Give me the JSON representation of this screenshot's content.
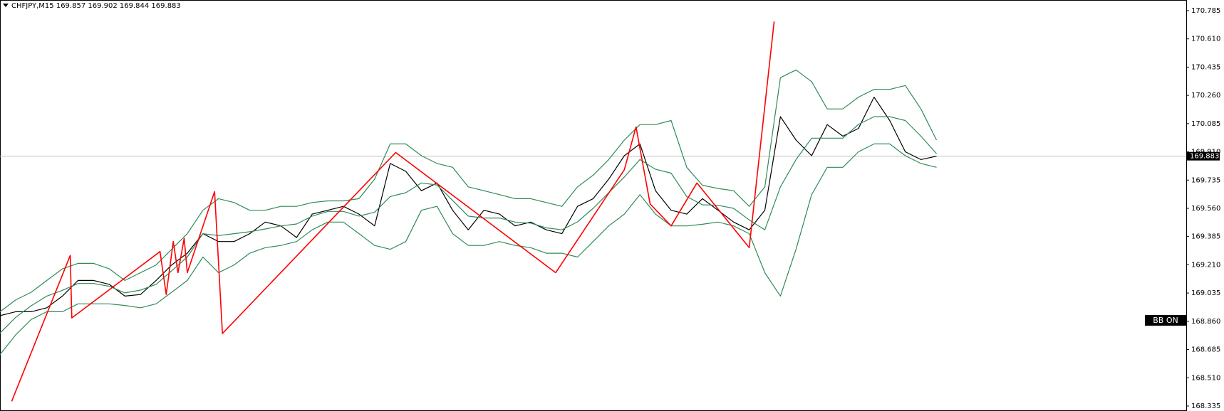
{
  "chart_data": {
    "type": "line",
    "title": "CHFJPY,M15  169.857 169.902 169.844 169.883",
    "badge": "BB ON",
    "price_line": 169.883,
    "ylim": [
      168.304,
      170.851
    ],
    "xlim": [
      0,
      76
    ],
    "yticks": [
      170.785,
      {
        "value": 170.61,
        "label": "170.610"
      },
      170.435,
      {
        "value": 170.26,
        "label": "170.260"
      },
      170.085,
      {
        "value": 169.91,
        "label": "169.910"
      },
      169.735,
      {
        "value": 169.56,
        "label": "169.560"
      },
      169.385,
      {
        "value": 169.21,
        "label": "169.210"
      },
      169.035,
      {
        "value": 168.86,
        "label": "168.860"
      },
      168.685,
      {
        "value": 168.51,
        "label": "168.510"
      },
      168.335
    ],
    "x": [
      0,
      1,
      2,
      3,
      4,
      5,
      6,
      7,
      8,
      9,
      10,
      11,
      12,
      13,
      14,
      15,
      16,
      17,
      18,
      19,
      20,
      21,
      22,
      23,
      24,
      25,
      26,
      27,
      28,
      29,
      30,
      31,
      32,
      33,
      34,
      35,
      36,
      37,
      38,
      39,
      40,
      41,
      42,
      43,
      44,
      45,
      46,
      47,
      48,
      49,
      50,
      51,
      52,
      53,
      54,
      55,
      56,
      57,
      58,
      59,
      60
    ],
    "series": [
      {
        "color": "#000000",
        "values": [
          168.895,
          168.919,
          168.919,
          168.944,
          169.016,
          169.113,
          169.113,
          169.089,
          169.016,
          169.026,
          169.113,
          169.209,
          169.282,
          169.403,
          169.354,
          169.354,
          169.403,
          169.475,
          169.451,
          169.379,
          169.524,
          169.548,
          169.572,
          169.524,
          169.451,
          169.838,
          169.789,
          169.669,
          169.717,
          169.548,
          169.427,
          169.548,
          169.524,
          169.451,
          169.475,
          169.427,
          169.403,
          169.572,
          169.62,
          169.741,
          169.886,
          169.959,
          169.669,
          169.548,
          169.524,
          169.62,
          169.548,
          169.475,
          169.427,
          169.548,
          170.128,
          169.983,
          169.886,
          170.079,
          170.007,
          170.055,
          170.249,
          170.104,
          169.91,
          169.862,
          169.883
        ]
      },
      {
        "color": "#2e8b57",
        "values": [
          168.919,
          168.992,
          169.04,
          169.113,
          169.185,
          169.219,
          169.219,
          169.185,
          169.113,
          169.161,
          169.209,
          169.306,
          169.403,
          169.548,
          169.62,
          169.596,
          169.548,
          169.548,
          169.572,
          169.572,
          169.596,
          169.606,
          169.606,
          169.62,
          169.741,
          169.959,
          169.959,
          169.886,
          169.838,
          169.814,
          169.693,
          169.669,
          169.645,
          169.62,
          169.62,
          169.596,
          169.572,
          169.693,
          169.765,
          169.862,
          169.983,
          170.079,
          170.079,
          170.104,
          169.814,
          169.703,
          169.683,
          169.669,
          169.572,
          169.693,
          170.37,
          170.418,
          170.345,
          170.176,
          170.176,
          170.249,
          170.297,
          170.297,
          170.321,
          170.176,
          169.983
        ]
      },
      {
        "color": "#2e8b57",
        "values": [
          168.787,
          168.884,
          168.956,
          169.016,
          169.052,
          169.094,
          169.094,
          169.077,
          169.036,
          169.053,
          169.089,
          169.173,
          169.258,
          169.403,
          169.391,
          169.403,
          169.415,
          169.432,
          169.451,
          169.463,
          169.512,
          169.541,
          169.541,
          169.512,
          169.536,
          169.633,
          169.657,
          169.717,
          169.705,
          169.609,
          169.512,
          169.5,
          169.5,
          169.475,
          169.468,
          169.439,
          169.427,
          169.476,
          169.56,
          169.657,
          169.754,
          169.862,
          169.802,
          169.778,
          169.633,
          169.582,
          169.579,
          169.56,
          169.488,
          169.427,
          169.693,
          169.862,
          169.995,
          169.995,
          169.995,
          170.08,
          170.128,
          170.128,
          170.104,
          170.007,
          169.899
        ]
      },
      {
        "color": "#2e8b57",
        "values": [
          168.654,
          168.775,
          168.871,
          168.919,
          168.919,
          168.968,
          168.968,
          168.968,
          168.958,
          168.944,
          168.968,
          169.04,
          169.113,
          169.258,
          169.161,
          169.209,
          169.282,
          169.316,
          169.33,
          169.354,
          169.427,
          169.475,
          169.475,
          169.403,
          169.33,
          169.306,
          169.354,
          169.548,
          169.572,
          169.403,
          169.33,
          169.33,
          169.354,
          169.33,
          169.316,
          169.282,
          169.282,
          169.258,
          169.354,
          169.451,
          169.524,
          169.645,
          169.524,
          169.451,
          169.451,
          169.461,
          169.475,
          169.451,
          169.403,
          169.161,
          169.016,
          169.306,
          169.645,
          169.814,
          169.814,
          169.91,
          169.959,
          169.959,
          169.886,
          169.838,
          169.814
        ]
      },
      {
        "color": "#ff0000",
        "x": [
          0.75,
          4.5,
          4.6,
          10.25,
          10.65,
          11.1,
          11.4,
          11.8,
          12,
          13.75,
          14.25,
          25.35,
          35.6,
          40,
          40.75,
          41.65,
          43,
          44.65,
          48,
          49.6
        ],
        "values": [
          168.364,
          169.268,
          168.881,
          169.292,
          169.026,
          169.354,
          169.161,
          169.374,
          169.161,
          169.664,
          168.784,
          169.906,
          169.161,
          169.799,
          170.065,
          169.587,
          169.451,
          169.717,
          169.316,
          170.718
        ]
      }
    ]
  }
}
